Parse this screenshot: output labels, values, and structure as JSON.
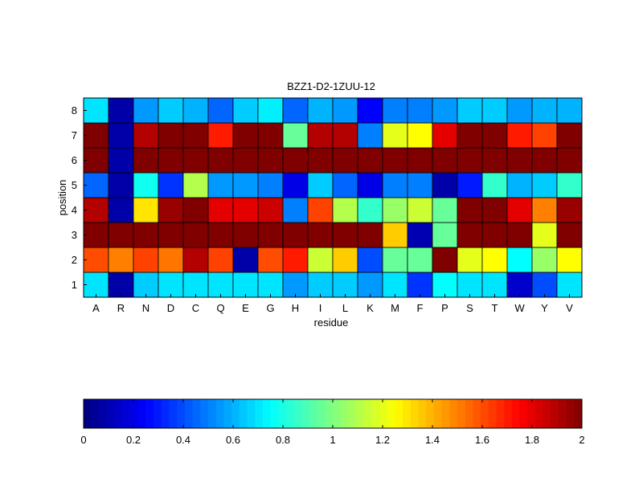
{
  "chart_data": [
    {
      "type": "heatmap",
      "title": "BZZ1-D2-1ZUU-12",
      "xlabel": "residue",
      "ylabel": "position",
      "x": [
        "A",
        "R",
        "N",
        "D",
        "C",
        "Q",
        "E",
        "G",
        "H",
        "I",
        "L",
        "K",
        "M",
        "F",
        "P",
        "S",
        "T",
        "W",
        "Y",
        "V"
      ],
      "y": [
        "1",
        "2",
        "3",
        "4",
        "5",
        "6",
        "7",
        "8"
      ],
      "colormap": "jet",
      "clim": [
        0,
        2
      ],
      "values": [
        [
          0.7,
          0.08,
          0.65,
          0.7,
          0.7,
          0.7,
          0.7,
          0.7,
          0.55,
          0.65,
          0.65,
          0.55,
          0.7,
          0.35,
          0.75,
          0.7,
          0.7,
          0.15,
          0.4,
          0.7
        ],
        [
          1.6,
          1.5,
          1.62,
          1.52,
          1.9,
          1.62,
          0.08,
          1.6,
          1.7,
          1.15,
          1.35,
          0.4,
          0.95,
          0.95,
          2.0,
          1.2,
          1.25,
          0.75,
          1.05,
          1.25
        ],
        [
          2.0,
          2.0,
          2.0,
          2.0,
          2.0,
          2.0,
          2.0,
          2.0,
          2.0,
          2.0,
          2.0,
          2.0,
          1.35,
          0.1,
          0.95,
          2.0,
          2.0,
          2.0,
          1.2,
          2.0
        ],
        [
          1.9,
          0.08,
          1.3,
          1.95,
          2.0,
          1.8,
          1.8,
          1.85,
          0.5,
          1.62,
          1.1,
          0.85,
          1.05,
          1.15,
          0.95,
          2.0,
          2.0,
          1.8,
          1.5,
          1.95
        ],
        [
          0.45,
          0.08,
          0.78,
          0.35,
          1.1,
          0.55,
          0.55,
          0.5,
          0.2,
          0.65,
          0.45,
          0.2,
          0.5,
          0.5,
          0.08,
          0.3,
          0.85,
          0.6,
          0.65,
          0.85
        ],
        [
          2.0,
          0.08,
          2.0,
          2.0,
          2.0,
          2.0,
          2.0,
          2.0,
          2.0,
          2.0,
          2.0,
          2.0,
          2.0,
          2.0,
          2.0,
          2.0,
          2.0,
          2.0,
          2.0,
          2.0
        ],
        [
          2.0,
          0.08,
          1.9,
          2.0,
          2.0,
          1.7,
          2.0,
          2.0,
          0.95,
          1.9,
          1.9,
          0.5,
          1.2,
          1.25,
          1.8,
          2.0,
          2.0,
          1.7,
          1.62,
          2.0
        ],
        [
          0.7,
          0.08,
          0.55,
          0.65,
          0.6,
          0.45,
          0.65,
          0.72,
          0.45,
          0.6,
          0.55,
          0.25,
          0.5,
          0.5,
          0.55,
          0.65,
          0.65,
          0.55,
          0.6,
          0.6
        ]
      ]
    },
    {
      "type": "colorbar",
      "ticks": [
        "0",
        "0.2",
        "0.4",
        "0.6",
        "0.8",
        "1",
        "1.2",
        "1.4",
        "1.6",
        "1.8",
        "2"
      ],
      "range": [
        0,
        2
      ],
      "levels": 64
    }
  ]
}
